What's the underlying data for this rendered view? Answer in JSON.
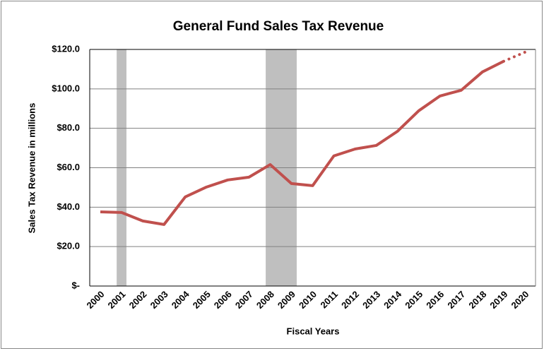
{
  "chart_data": {
    "type": "line",
    "title": "General Fund Sales Tax Revenue",
    "x_label": "Fiscal Years",
    "y_label": "Sales Tax Revenue in millions",
    "categories": [
      "2000",
      "2001",
      "2002",
      "2003",
      "2004",
      "2005",
      "2006",
      "2007",
      "2008",
      "2009",
      "2010",
      "2011",
      "2012",
      "2013",
      "2014",
      "2015",
      "2016",
      "2017",
      "2018",
      "2019",
      "2020"
    ],
    "values": [
      37.6,
      37.3,
      33,
      31.2,
      45.2,
      50.2,
      53.8,
      55.2,
      61.6,
      52,
      50.9,
      66,
      69.5,
      71.3,
      78.5,
      88.9,
      96.4,
      99.3,
      108.6,
      114,
      118.6
    ],
    "color": "#c0504d",
    "dotted_from": "2019",
    "shaded_ranges": [
      [
        2000.77,
        2001.23
      ],
      [
        2007.79,
        2009.25
      ]
    ],
    "shade_color": "#bfbfbf",
    "ylim": [
      0,
      120
    ],
    "yticks": [
      {
        "value": 0,
        "label": "$-"
      },
      {
        "value": 20,
        "label": "$20.0"
      },
      {
        "value": 40,
        "label": "$40.0"
      },
      {
        "value": 60,
        "label": "$60.0"
      },
      {
        "value": 80,
        "label": "$80.0"
      },
      {
        "value": 100,
        "label": "$100.0"
      },
      {
        "value": 120,
        "label": "$120.0"
      }
    ],
    "grid": true
  }
}
